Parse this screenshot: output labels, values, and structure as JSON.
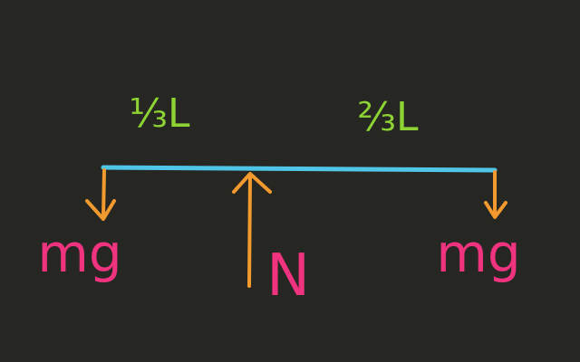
{
  "diagram": {
    "segment_left": "⅓L",
    "segment_right": "⅔L",
    "force_left": "mg",
    "force_center": "N",
    "force_right": "mg"
  },
  "colors": {
    "background": "#262622",
    "beam": "#4fc6e8",
    "arrow": "#f39a2e",
    "weight_label": "#f0337e",
    "segment_label": "#8ed334"
  }
}
